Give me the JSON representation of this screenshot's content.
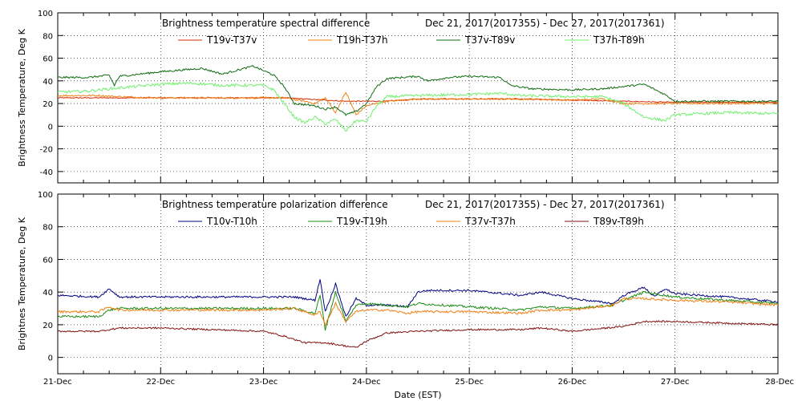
{
  "x_axis": {
    "label": "Date (EST)",
    "tick_labels": [
      "21-Dec",
      "22-Dec",
      "23-Dec",
      "24-Dec",
      "25-Dec",
      "26-Dec",
      "27-Dec",
      "28-Dec"
    ]
  },
  "chart_data": [
    {
      "type": "line",
      "title": "Brightness temperature spectral difference",
      "date_range": "Dec 21, 2017(2017355) - Dec 27, 2017(2017361)",
      "ylabel": "Brightness Temperature, Deg K",
      "xlim": [
        0,
        7
      ],
      "ylim": [
        -50,
        100
      ],
      "yticks": [
        -40,
        -20,
        0,
        20,
        40,
        60,
        80,
        100
      ],
      "grid": "dotted",
      "legend_position": "top",
      "series": [
        {
          "name": "T19v-T37v",
          "color": "#d62b06",
          "noise": 0.4,
          "x": [
            0,
            0.5,
            1,
            1.5,
            2,
            2.2,
            2.4,
            2.6,
            2.8,
            3,
            3.2,
            3.5,
            4,
            4.5,
            5,
            5.5,
            6,
            6.5,
            7
          ],
          "y": [
            25,
            25,
            25,
            25,
            25,
            25,
            24,
            23,
            22,
            22,
            22,
            24,
            24,
            24,
            23,
            22,
            21,
            21,
            21
          ]
        },
        {
          "name": "T19h-T37h",
          "color": "#f07f13",
          "noise": 0.8,
          "x": [
            0,
            0.4,
            0.6,
            1,
            1.5,
            2,
            2.2,
            2.4,
            2.5,
            2.6,
            2.7,
            2.8,
            2.9,
            3,
            3.2,
            3.5,
            4,
            4.5,
            5,
            5.3,
            5.5,
            5.8,
            6,
            6.5,
            7
          ],
          "y": [
            27,
            27,
            26,
            25,
            25,
            25,
            25,
            22,
            20,
            25,
            12,
            30,
            10,
            18,
            22,
            24,
            24,
            24,
            23,
            24,
            20,
            20,
            20,
            20,
            20
          ]
        },
        {
          "name": "T37v-T89v",
          "color": "#0f6b10",
          "noise": 0.8,
          "x": [
            0,
            0.3,
            0.5,
            0.55,
            0.6,
            1,
            1.4,
            1.6,
            1.9,
            2.1,
            2.2,
            2.3,
            2.5,
            2.6,
            2.7,
            2.8,
            2.9,
            3,
            3.1,
            3.2,
            3.5,
            3.6,
            3.8,
            4,
            4.3,
            4.4,
            4.6,
            5,
            5.3,
            5.5,
            5.7,
            5.9,
            6,
            6.5,
            7
          ],
          "y": [
            43,
            43,
            45,
            36,
            44,
            48,
            51,
            46,
            53,
            45,
            35,
            20,
            18,
            15,
            17,
            10,
            13,
            20,
            35,
            42,
            44,
            40,
            43,
            44,
            43,
            36,
            33,
            32,
            33,
            35,
            37,
            28,
            22,
            22,
            22
          ]
        },
        {
          "name": "T37h-T89h",
          "color": "#6ff06c",
          "noise": 1.2,
          "x": [
            0,
            0.3,
            0.5,
            1,
            1.3,
            1.6,
            2,
            2.1,
            2.2,
            2.3,
            2.4,
            2.5,
            2.6,
            2.7,
            2.8,
            2.9,
            3,
            3.1,
            3.2,
            3.5,
            4,
            4.3,
            4.5,
            5,
            5.3,
            5.5,
            5.7,
            5.9,
            6,
            6.5,
            7
          ],
          "y": [
            30,
            31,
            33,
            37,
            38,
            36,
            36,
            32,
            20,
            8,
            3,
            8,
            2,
            6,
            -4,
            5,
            4,
            18,
            26,
            27,
            28,
            29,
            27,
            26,
            26,
            20,
            8,
            5,
            10,
            12,
            11
          ]
        }
      ]
    },
    {
      "type": "line",
      "title": "Brightness temperature polarization difference",
      "date_range": "Dec 21, 2017(2017355) - Dec 27, 2017(2017361)",
      "ylabel": "Brightnes Temperature, Deg K",
      "xlim": [
        0,
        7
      ],
      "ylim": [
        -10,
        100
      ],
      "yticks": [
        0,
        20,
        40,
        60,
        80,
        100
      ],
      "grid": "dotted",
      "legend_position": "top",
      "series": [
        {
          "name": "T10v-T10h",
          "color": "#00007f",
          "noise": 0.6,
          "x": [
            0,
            0.4,
            0.5,
            0.6,
            1,
            1.5,
            2,
            2.3,
            2.5,
            2.55,
            2.6,
            2.7,
            2.8,
            2.9,
            3,
            3.2,
            3.4,
            3.5,
            3.6,
            4,
            4.5,
            4.7,
            5,
            5.4,
            5.5,
            5.7,
            5.8,
            5.9,
            6,
            6.5,
            7
          ],
          "y": [
            38,
            37,
            42,
            37,
            37,
            37,
            37,
            37,
            35,
            48,
            28,
            45,
            25,
            36,
            32,
            32,
            31,
            40,
            41,
            41,
            38,
            40,
            36,
            33,
            38,
            43,
            37,
            42,
            39,
            37,
            34
          ]
        },
        {
          "name": "T19v-T19h",
          "color": "#1d8b12",
          "noise": 0.7,
          "x": [
            0,
            0.4,
            0.5,
            0.6,
            1,
            1.5,
            2,
            2.3,
            2.5,
            2.55,
            2.6,
            2.7,
            2.8,
            2.9,
            3,
            3.2,
            3.4,
            3.5,
            4,
            4.5,
            4.7,
            5,
            5.4,
            5.5,
            5.7,
            6,
            6.5,
            7
          ],
          "y": [
            25,
            25,
            29,
            30,
            30,
            30,
            30,
            30,
            27,
            38,
            17,
            40,
            22,
            32,
            33,
            32,
            31,
            33,
            31,
            29,
            31,
            30,
            32,
            35,
            40,
            37,
            35,
            33
          ]
        },
        {
          "name": "T37v-T37h",
          "color": "#f07f13",
          "noise": 0.7,
          "x": [
            0,
            0.4,
            0.5,
            0.6,
            1,
            1.5,
            2,
            2.3,
            2.5,
            2.55,
            2.6,
            2.7,
            2.8,
            2.9,
            3,
            3.2,
            3.4,
            3.5,
            4,
            4.5,
            4.7,
            5,
            5.4,
            5.5,
            5.7,
            6,
            6.5,
            7
          ],
          "y": [
            28,
            28,
            31,
            29,
            29,
            29,
            29,
            30,
            26,
            28,
            20,
            33,
            22,
            28,
            29,
            29,
            27,
            28,
            28,
            27,
            29,
            29,
            32,
            36,
            36,
            35,
            34,
            32
          ]
        },
        {
          "name": "T89v-T89h",
          "color": "#7f1010",
          "noise": 0.5,
          "x": [
            0,
            0.4,
            0.5,
            0.6,
            1,
            1.5,
            2,
            2.2,
            2.4,
            2.6,
            2.8,
            2.9,
            3,
            3.2,
            3.5,
            4,
            4.5,
            4.7,
            5,
            5.5,
            5.7,
            6,
            6.5,
            7
          ],
          "y": [
            16,
            16,
            17,
            18,
            18,
            17,
            16,
            13,
            9,
            9,
            7,
            6,
            10,
            15,
            16,
            17,
            17,
            18,
            16,
            19,
            22,
            22,
            21,
            20
          ]
        }
      ]
    }
  ]
}
